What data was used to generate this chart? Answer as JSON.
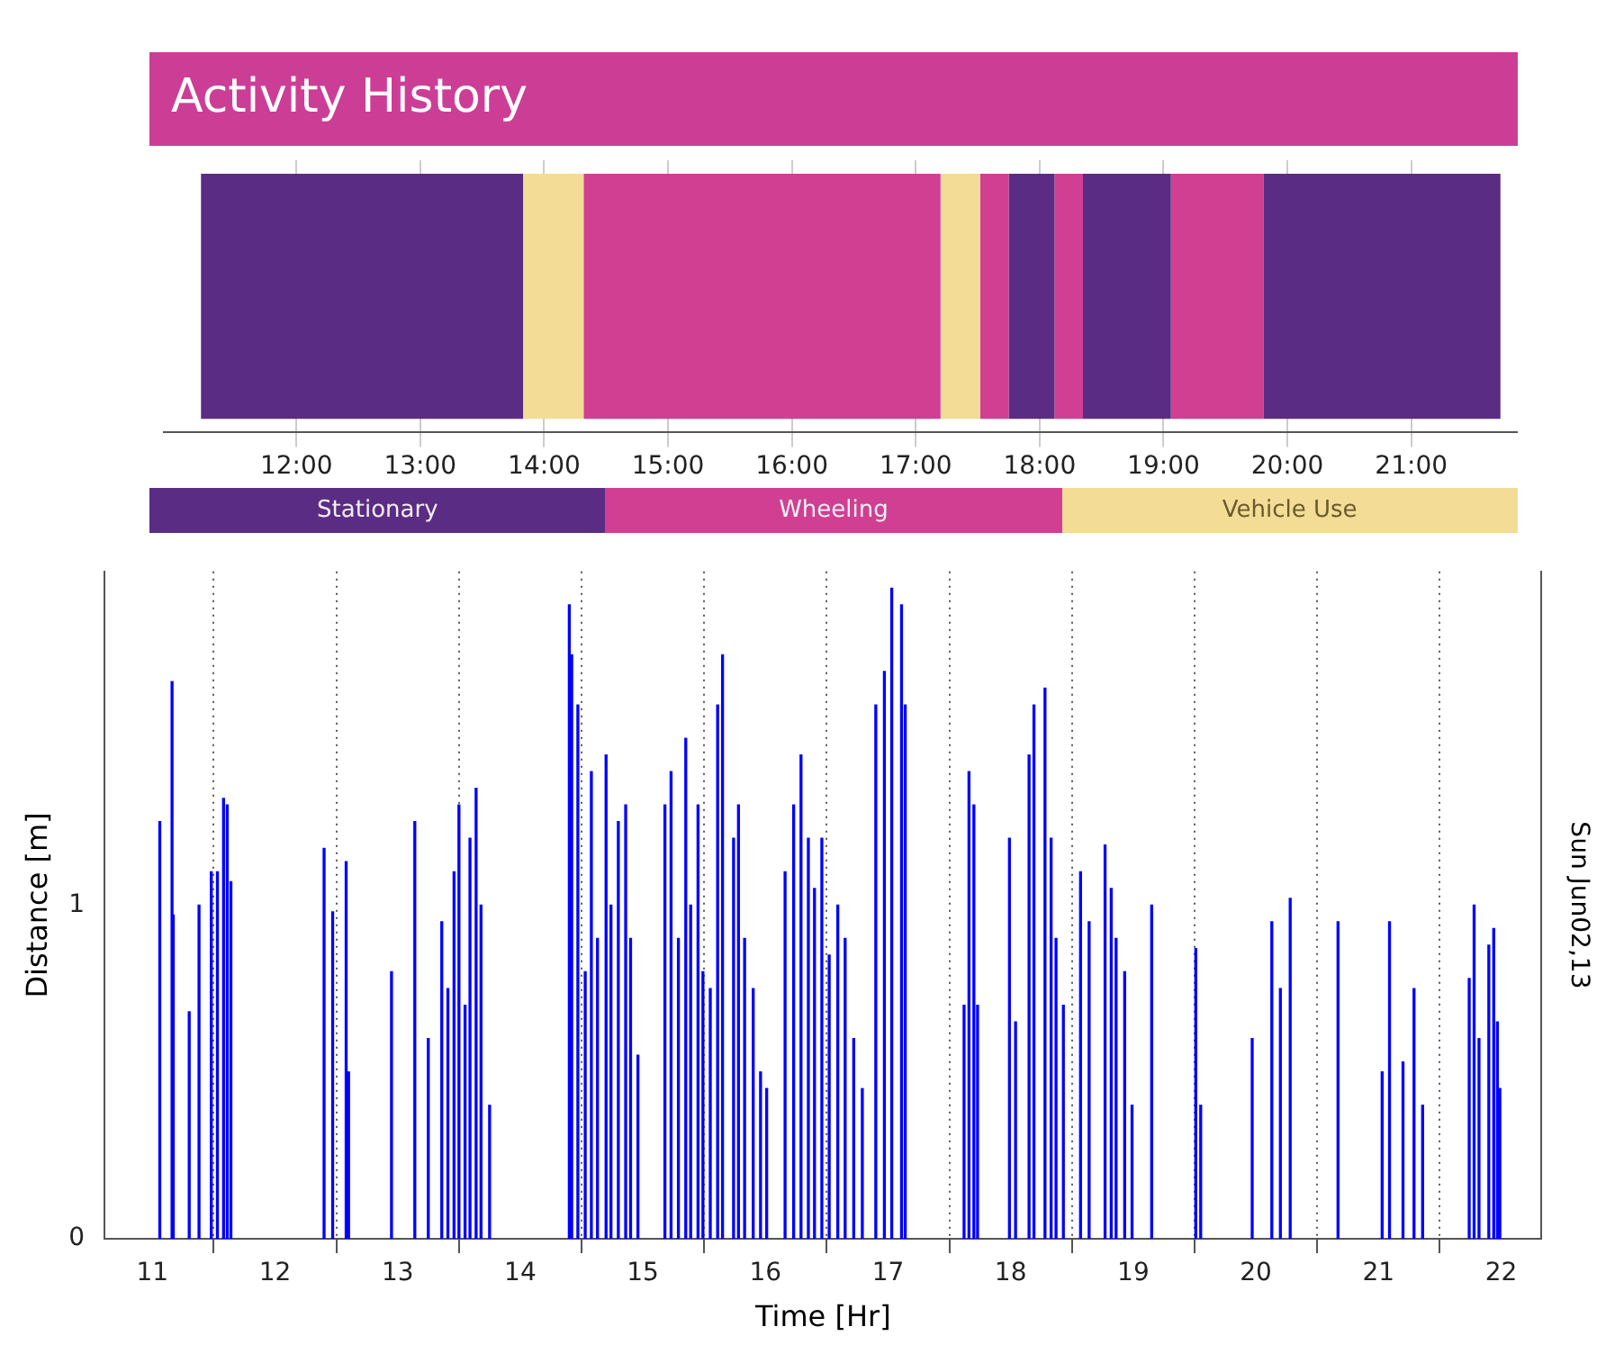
{
  "chart_data": [
    {
      "type": "bar",
      "title": "Activity History",
      "orientation": "horizontal",
      "categories": [
        null
      ],
      "xlim": [
        10.93,
        21.86
      ],
      "xticks": [
        {
          "value": 12,
          "label": "12:00"
        },
        {
          "value": 13,
          "label": "13:00"
        },
        {
          "value": 14,
          "label": "14:00"
        },
        {
          "value": 15,
          "label": "15:00"
        },
        {
          "value": 16,
          "label": "16:00"
        },
        {
          "value": 17,
          "label": "17:00"
        },
        {
          "value": 18,
          "label": "18:00"
        },
        {
          "value": 19,
          "label": "19:00"
        },
        {
          "value": 20,
          "label": "20:00"
        },
        {
          "value": 21,
          "label": "21:00"
        }
      ],
      "grid": "x",
      "tick_labels": "x",
      "legend": "bottom",
      "series": [
        {
          "name": "Stationary",
          "color": "#5b2c83",
          "base": [
            11.23
          ],
          "values": [
            2.6
          ]
        },
        {
          "name": "Wheeling",
          "color": "#d03f92",
          "base": [
            14.32
          ],
          "values": [
            2.88
          ]
        },
        {
          "name": "Vehicle Use",
          "color": "#f3dc96",
          "base": [
            13.83
          ],
          "values": [
            0.49
          ]
        },
        {
          "color": "#f3dc96",
          "base": [
            17.2
          ],
          "values": [
            0.32
          ]
        },
        {
          "color": "#d03f92",
          "base": [
            17.52
          ],
          "values": [
            0.23
          ]
        },
        {
          "color": "#5b2c83",
          "base": [
            17.75
          ],
          "values": [
            0.37
          ]
        },
        {
          "color": "#d03f92",
          "base": [
            18.12
          ],
          "values": [
            0.23
          ]
        },
        {
          "color": "#5b2c83",
          "base": [
            18.35
          ],
          "values": [
            0.71
          ]
        },
        {
          "color": "#d03f92",
          "base": [
            19.06
          ],
          "values": [
            0.75
          ]
        },
        {
          "color": "#5b2c83",
          "base": [
            19.81
          ],
          "values": [
            1.91
          ]
        }
      ]
    },
    {
      "type": "bar",
      "xlabel": "Time [Hr]",
      "ylabel": "Distance [m]",
      "y2label": "Sun Jun02,13",
      "color": "#0000ff",
      "xlim": [
        10.61,
        22.33
      ],
      "xticks": [
        11,
        12,
        13,
        14,
        15,
        16,
        17,
        18,
        19,
        20,
        21,
        22
      ],
      "ylim": [
        0,
        2
      ],
      "yticks": [
        0,
        1
      ],
      "grid": "x",
      "x": [
        11.06,
        11.16,
        11.17,
        11.3,
        11.38,
        11.48,
        11.53,
        11.58,
        11.61,
        11.64,
        12.4,
        12.47,
        12.58,
        12.6,
        12.95,
        13.14,
        13.25,
        13.36,
        13.41,
        13.46,
        13.5,
        13.55,
        13.59,
        13.64,
        13.68,
        13.72,
        13.75,
        14.4,
        14.42,
        14.47,
        14.53,
        14.58,
        14.63,
        14.7,
        14.74,
        14.8,
        14.86,
        14.9,
        14.96,
        15.18,
        15.23,
        15.29,
        15.35,
        15.39,
        15.45,
        15.49,
        15.55,
        15.61,
        15.65,
        15.7,
        15.74,
        15.78,
        15.83,
        15.9,
        15.96,
        16.01,
        16.16,
        16.23,
        16.29,
        16.35,
        16.4,
        16.46,
        16.52,
        16.59,
        16.65,
        16.72,
        16.79,
        16.9,
        16.93,
        16.97,
        17.03,
        17.07,
        17.11,
        17.14,
        17.62,
        17.66,
        17.7,
        17.73,
        17.99,
        18.04,
        18.15,
        18.19,
        18.24,
        18.28,
        18.33,
        18.37,
        18.43,
        18.57,
        18.64,
        18.77,
        18.82,
        18.86,
        18.93,
        18.99,
        19.15,
        19.51,
        19.55,
        19.97,
        20.13,
        20.2,
        20.28,
        20.67,
        21.03,
        21.09,
        21.2,
        21.29,
        21.36,
        21.74,
        21.78,
        21.82,
        21.9,
        21.94,
        21.97,
        21.99
      ],
      "values": [
        1.25,
        1.67,
        0.97,
        0.68,
        1.0,
        1.1,
        1.1,
        1.32,
        1.3,
        1.07,
        1.17,
        0.98,
        1.13,
        0.5,
        0.8,
        1.25,
        0.6,
        0.95,
        0.75,
        1.1,
        1.3,
        0.7,
        1.2,
        1.35,
        1.0,
        null,
        0.4,
        1.9,
        1.75,
        1.6,
        0.8,
        1.4,
        0.9,
        1.45,
        1.0,
        1.25,
        1.3,
        0.9,
        0.55,
        1.3,
        1.4,
        0.9,
        1.5,
        1.0,
        1.3,
        0.8,
        0.75,
        1.6,
        1.75,
        null,
        1.2,
        1.3,
        0.9,
        0.75,
        0.5,
        0.45,
        1.1,
        1.3,
        1.45,
        1.2,
        1.05,
        1.2,
        0.85,
        1.0,
        0.9,
        0.6,
        0.45,
        1.6,
        null,
        1.7,
        1.95,
        null,
        1.9,
        1.6,
        0.7,
        1.4,
        1.3,
        0.7,
        1.2,
        0.65,
        1.45,
        1.6,
        null,
        1.65,
        1.2,
        0.9,
        0.7,
        1.1,
        0.95,
        1.18,
        1.05,
        0.9,
        0.8,
        0.4,
        1.0,
        0.87,
        0.4,
        0.6,
        0.95,
        0.75,
        1.02,
        0.95,
        0.5,
        0.95,
        0.53,
        0.75,
        0.4,
        0.78,
        1.0,
        0.6,
        0.88,
        0.93,
        0.65,
        0.45
      ]
    }
  ]
}
